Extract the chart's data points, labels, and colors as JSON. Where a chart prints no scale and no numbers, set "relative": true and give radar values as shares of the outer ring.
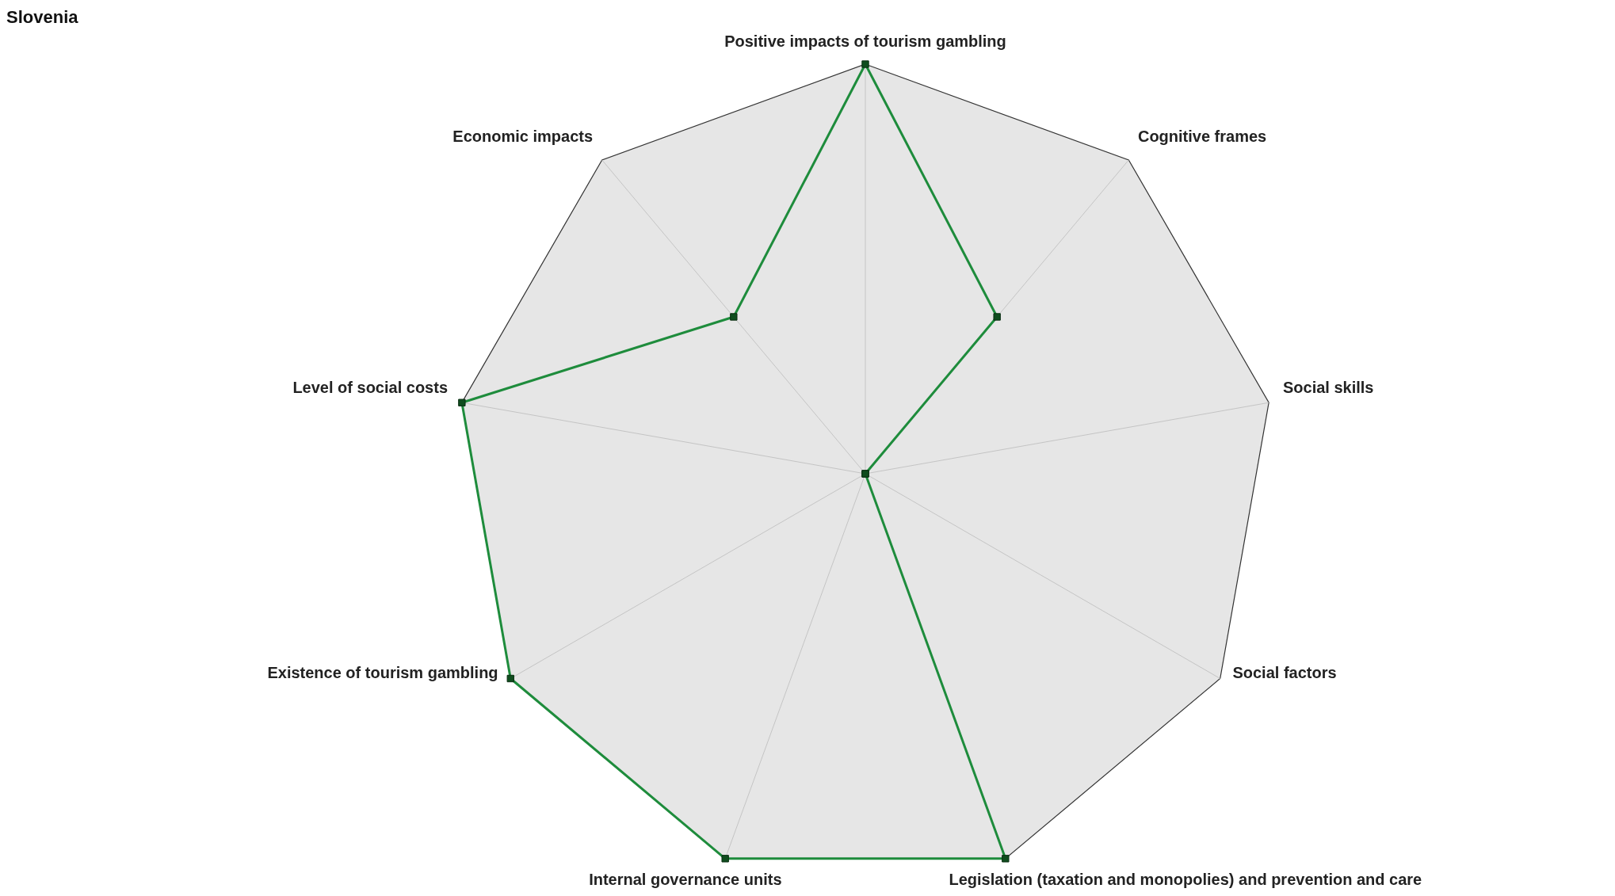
{
  "chart_data": {
    "type": "radar",
    "title": "Slovenia",
    "categories": [
      "Positive impacts of tourism gambling",
      "Cognitive frames",
      "Social skills",
      "Social factors",
      "Legislation (taxation and monopolies) and prevention and care",
      "Internal governance units",
      "Existence of tourism gambling",
      "Level of social costs",
      "Economic impacts"
    ],
    "series": [
      {
        "color": "#1e8c3c",
        "values": [
          1,
          0.5,
          0,
          0,
          1,
          1,
          1,
          1,
          0.5
        ]
      }
    ],
    "relative": true,
    "marker": "square",
    "grid": true
  }
}
